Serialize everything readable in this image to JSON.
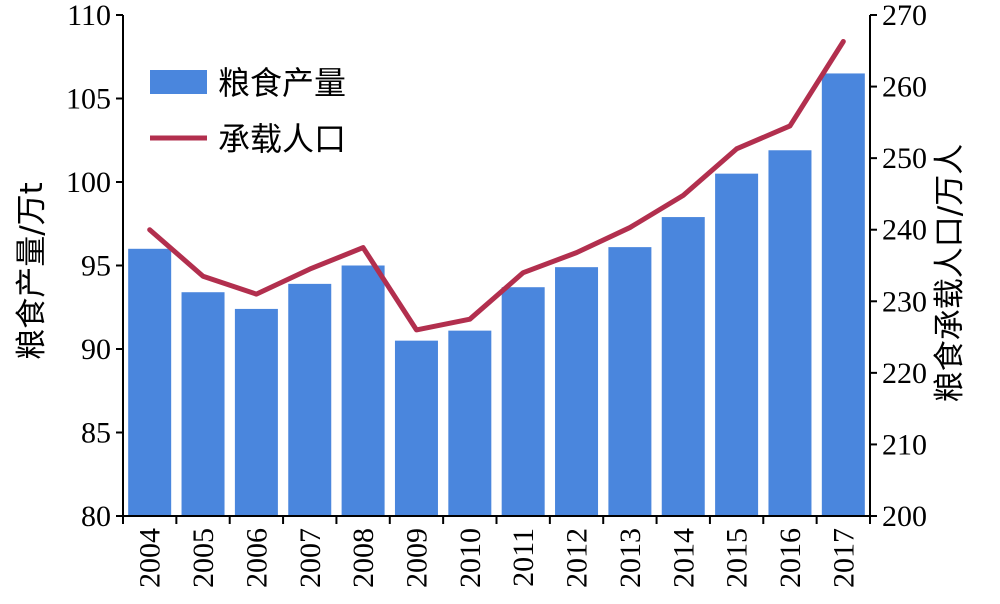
{
  "chart_data": {
    "type": "bar",
    "categories": [
      "2004",
      "2005",
      "2006",
      "2007",
      "2008",
      "2009",
      "2010",
      "2011",
      "2012",
      "2013",
      "2014",
      "2015",
      "2016",
      "2017"
    ],
    "series": [
      {
        "name": "粮食产量",
        "type": "bar",
        "axis": "left",
        "color": "#4a86dd",
        "values": [
          96.0,
          93.4,
          92.4,
          93.9,
          95.0,
          90.5,
          91.1,
          93.7,
          94.9,
          96.1,
          97.9,
          100.5,
          101.9,
          106.5
        ]
      },
      {
        "name": "承载人口",
        "type": "line",
        "axis": "right",
        "color": "#b22f4e",
        "values": [
          240.0,
          233.5,
          231.0,
          234.5,
          237.5,
          226.0,
          227.5,
          234.0,
          236.8,
          240.3,
          244.8,
          251.3,
          254.5,
          266.3
        ]
      }
    ],
    "ylabel": "粮食产量/万t",
    "y2label": "粮食承载人口/万人",
    "ylim": [
      80,
      110
    ],
    "y2lim": [
      200,
      270
    ],
    "yticks": [
      "80",
      "85",
      "90",
      "95",
      "100",
      "105",
      "110"
    ],
    "y2ticks": [
      "200",
      "210",
      "220",
      "230",
      "240",
      "250",
      "260",
      "270"
    ],
    "legend_position": "top-left",
    "grid": false
  }
}
